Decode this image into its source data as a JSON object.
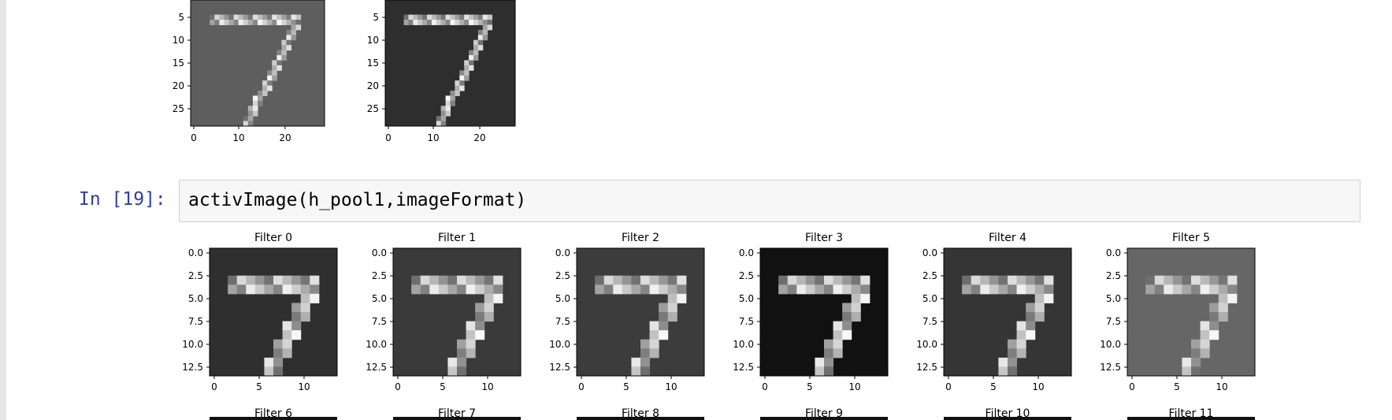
{
  "notebook": {
    "cell_prompt": "In [19]:",
    "cell_code": "activImage(h_pool1,imageFormat)"
  },
  "top_plots": {
    "y_ticks": [
      "5",
      "10",
      "15",
      "20",
      "25"
    ],
    "x_ticks": [
      "0",
      "10",
      "20"
    ],
    "panels": [
      {
        "colormap": "gray",
        "background": "#5e5e5e"
      },
      {
        "colormap": "gray",
        "background": "#2e2e2e"
      }
    ]
  },
  "filters": {
    "row1": [
      "Filter 0",
      "Filter 1",
      "Filter 2",
      "Filter 3",
      "Filter 4",
      "Filter 5"
    ],
    "row2": [
      "Filter 6",
      "Filter 7",
      "Filter 8",
      "Filter 9",
      "Filter 10",
      "Filter 11"
    ],
    "y_ticks": [
      "0.0",
      "2.5",
      "5.0",
      "7.5",
      "10.0",
      "12.5"
    ],
    "x_ticks": [
      "0",
      "5",
      "10"
    ],
    "backgrounds": [
      "#2f2f2f",
      "#3a3a3a",
      "#3c3c3c",
      "#111111",
      "#353535",
      "#666666"
    ]
  }
}
